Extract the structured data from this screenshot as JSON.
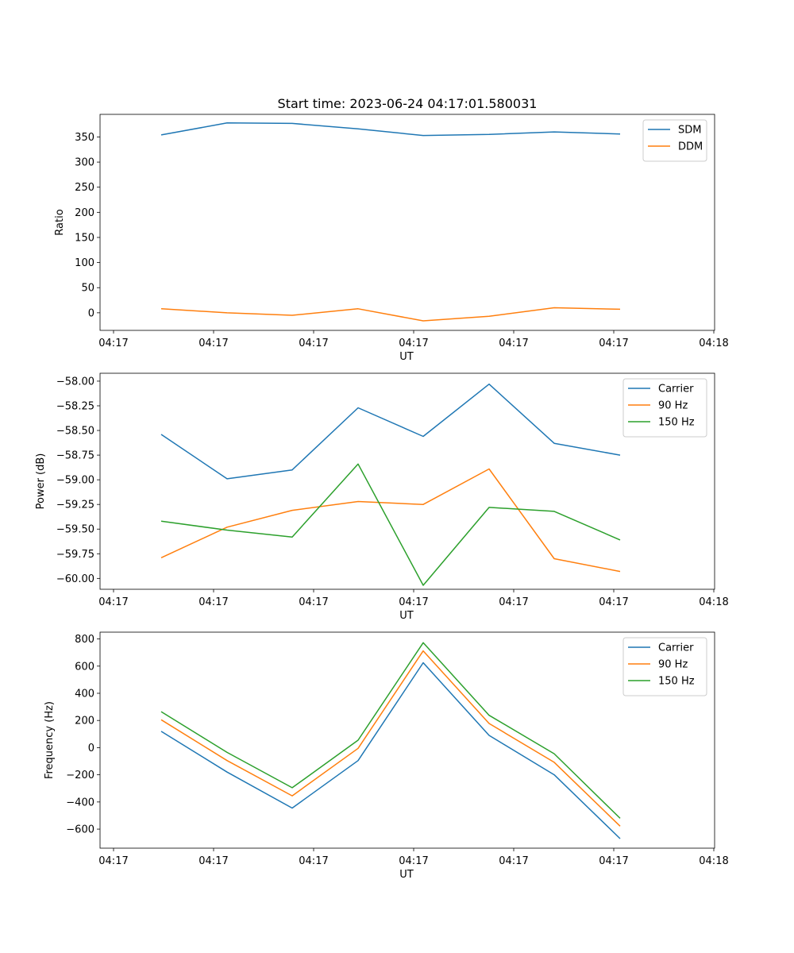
{
  "figure_title": "Start time: 2023-06-24 04:17:01.580031",
  "chart_data": [
    {
      "type": "line",
      "title": "Start time: 2023-06-24 04:17:01.580031",
      "xlabel": "UT",
      "ylabel": "Ratio",
      "x_tick_labels": [
        "04:17",
        "04:17",
        "04:17",
        "04:17",
        "04:17",
        "04:17",
        "04:17"
      ],
      "x_last_tick_label": "04:18",
      "y_ticks": [
        0,
        50,
        100,
        150,
        200,
        250,
        300,
        350
      ],
      "y_tick_labels": [
        "0",
        "50",
        "100",
        "150",
        "200",
        "250",
        "300",
        "350"
      ],
      "ylim": [
        -35,
        395
      ],
      "legend_position": "top-right",
      "grid": false,
      "series": [
        {
          "name": "SDM",
          "color": "#1f77b4",
          "values": [
            354,
            378,
            377,
            366,
            353,
            355,
            360,
            356
          ]
        },
        {
          "name": "DDM",
          "color": "#ff7f0e",
          "values": [
            8,
            0,
            -5,
            8,
            -16,
            -7,
            10,
            7
          ]
        }
      ]
    },
    {
      "type": "line",
      "xlabel": "UT",
      "ylabel": "Power (dB)",
      "x_tick_labels": [
        "04:17",
        "04:17",
        "04:17",
        "04:17",
        "04:17",
        "04:17",
        "04:17"
      ],
      "x_last_tick_label": "04:18",
      "y_ticks": [
        -58.0,
        -58.25,
        -58.5,
        -58.75,
        -59.0,
        -59.25,
        -59.5,
        -59.75,
        -60.0
      ],
      "y_tick_labels": [
        "−58.00",
        "−58.25",
        "−58.50",
        "−58.75",
        "−59.00",
        "−59.25",
        "−59.50",
        "−59.75",
        "−60.00"
      ],
      "ylim": [
        -60.11,
        -57.92
      ],
      "legend_position": "top-right",
      "grid": false,
      "series": [
        {
          "name": "Carrier",
          "color": "#1f77b4",
          "values": [
            -58.54,
            -58.99,
            -58.9,
            -58.27,
            -58.56,
            -58.03,
            -58.63,
            -58.75
          ]
        },
        {
          "name": "90 Hz",
          "color": "#ff7f0e",
          "values": [
            -59.79,
            -59.48,
            -59.31,
            -59.22,
            -59.25,
            -58.89,
            -59.8,
            -59.93
          ]
        },
        {
          "name": "150 Hz",
          "color": "#2ca02c",
          "values": [
            -59.42,
            -59.51,
            -59.58,
            -58.84,
            -60.07,
            -59.28,
            -59.32,
            -59.61
          ]
        }
      ]
    },
    {
      "type": "line",
      "xlabel": "UT",
      "ylabel": "Frequency (Hz)",
      "x_tick_labels": [
        "04:17",
        "04:17",
        "04:17",
        "04:17",
        "04:17",
        "04:17",
        "04:17"
      ],
      "x_last_tick_label": "04:18",
      "y_ticks": [
        800,
        600,
        400,
        200,
        0,
        -200,
        -400,
        -600
      ],
      "y_tick_labels": [
        "800",
        "600",
        "400",
        "200",
        "0",
        "−200",
        "−400",
        "−600"
      ],
      "ylim": [
        -740,
        850
      ],
      "legend_position": "top-right",
      "grid": false,
      "series": [
        {
          "name": "Carrier",
          "color": "#1f77b4",
          "values": [
            120,
            -180,
            -445,
            -95,
            625,
            90,
            -200,
            -670
          ]
        },
        {
          "name": "90 Hz",
          "color": "#ff7f0e",
          "values": [
            205,
            -95,
            -355,
            -5,
            712,
            178,
            -108,
            -578
          ]
        },
        {
          "name": "150 Hz",
          "color": "#2ca02c",
          "values": [
            265,
            -35,
            -295,
            55,
            772,
            238,
            -45,
            -520
          ]
        }
      ]
    }
  ]
}
